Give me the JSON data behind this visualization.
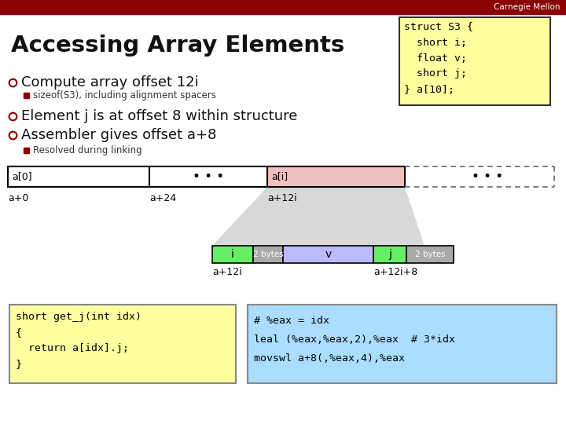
{
  "title": "Accessing Array Elements",
  "bg_color": "#ffffff",
  "header_color": "#8b0000",
  "header_text": "Carnegie Mellon",
  "header_text_color": "#ffffff",
  "bullet_color": "#8b0000",
  "bullet1": "Compute array offset 12i",
  "sub_bullet1": "sizeof(S3), including alignment spacers",
  "bullet2": "Element j is at offset 8 within structure",
  "bullet3": "Assembler gives offset a+8",
  "sub_bullet3": "Resolved during linking",
  "struct_box_color": "#ffffa0",
  "struct_box_border": "#333333",
  "struct_text_lines": [
    "struct S3 {",
    "  short i;",
    "  float v;",
    "  short j;",
    "} a[10];"
  ],
  "ai_color": "#f0c0c0",
  "seg_i_color": "#66ee66",
  "seg_2bytes_color": "#aaaaaa",
  "seg_v_color": "#bbbbff",
  "seg_j_color": "#66ee66",
  "code_box1_color": "#ffffa0",
  "code_box1_border": "#888888",
  "code_box1_lines": [
    "short get_j(int idx)",
    "{",
    "  return a[idx].j;",
    "}"
  ],
  "code_box2_color": "#aaddff",
  "code_box2_border": "#888888",
  "code_box2_lines": [
    "# %eax = idx",
    "leal (%eax,%eax,2),%eax  # 3*idx",
    "movswl a+8(,%eax,4),%eax"
  ]
}
